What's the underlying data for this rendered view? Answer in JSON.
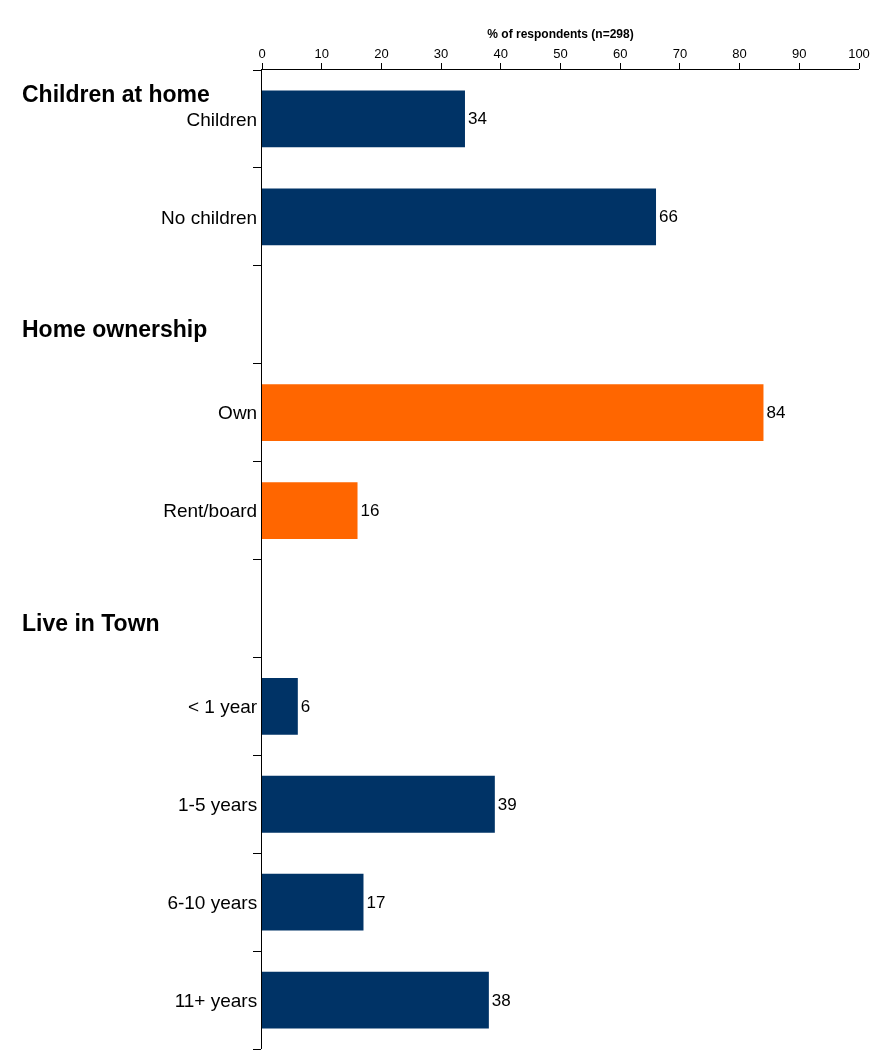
{
  "chart_data": {
    "type": "bar",
    "orientation": "horizontal",
    "xlabel": "% of respondents (n=298)",
    "categories": [
      "Children",
      "No children",
      null,
      "Own",
      "Rent/board",
      null,
      "< 1 year",
      "1-5 years",
      "6-10 years",
      "11+ years"
    ],
    "values": [
      34,
      66,
      null,
      84,
      16,
      null,
      6,
      39,
      17,
      38
    ],
    "colors": [
      "#003366",
      "#003366",
      null,
      "#ff6600",
      "#ff6600",
      null,
      "#003366",
      "#003366",
      "#003366",
      "#003366"
    ],
    "annotations": [
      "Children at home",
      "Home ownership",
      "Live in Town"
    ],
    "xlim": [
      0,
      100
    ],
    "xticks": [
      0,
      10,
      20,
      30,
      40,
      50,
      60,
      70,
      80,
      90,
      100
    ],
    "data_labels": true,
    "legend": false
  }
}
